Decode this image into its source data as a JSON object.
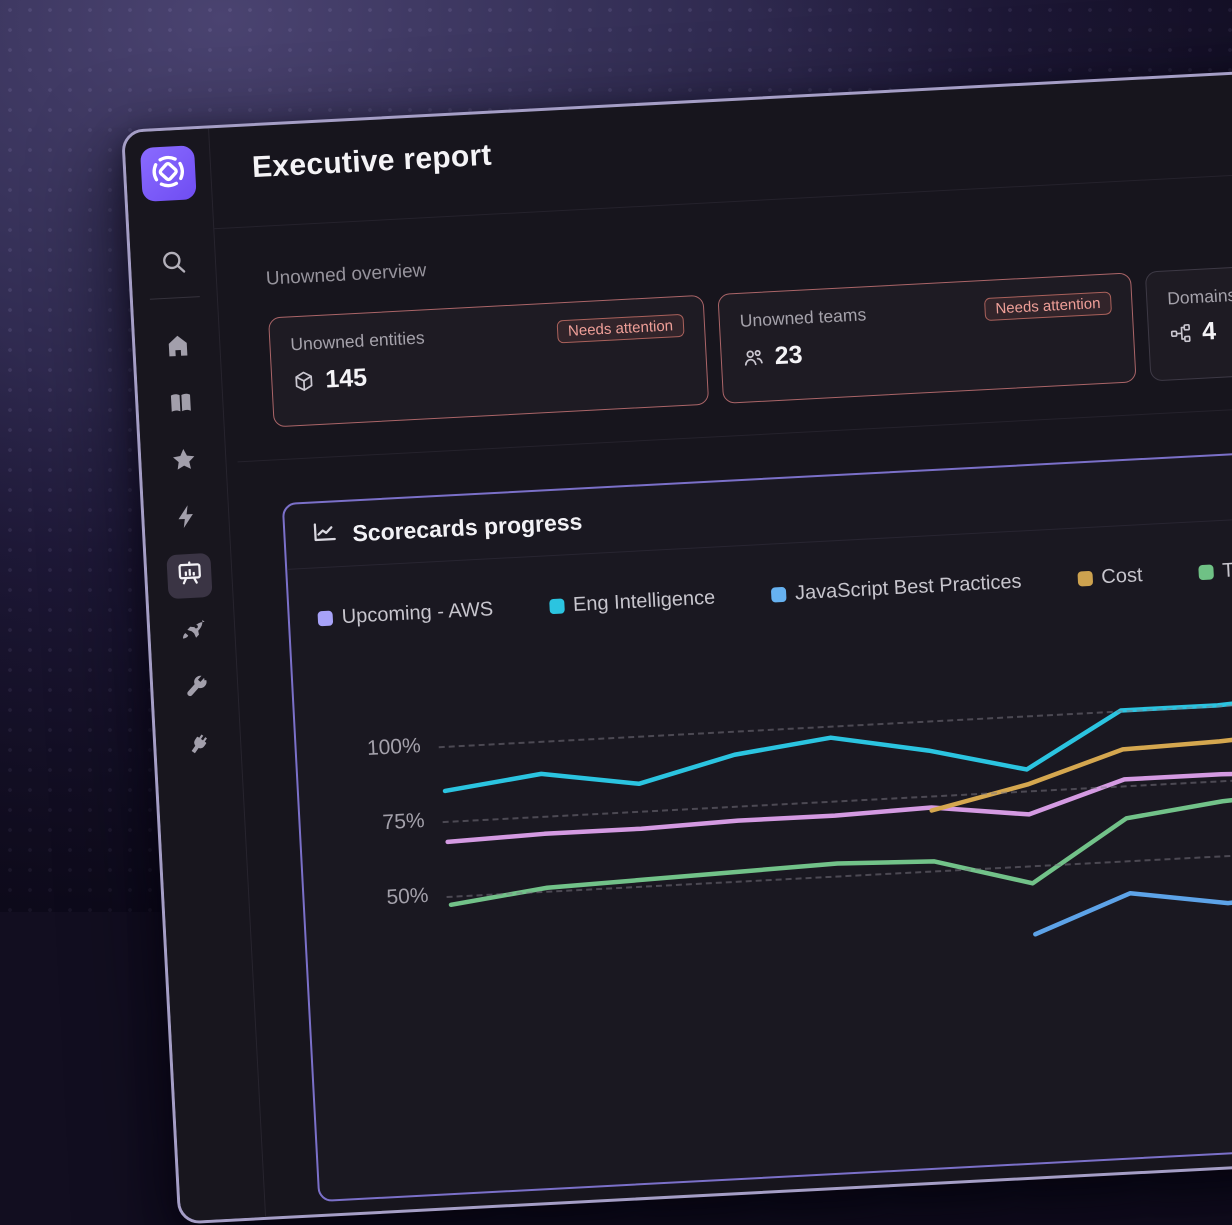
{
  "app": {
    "title": "Executive report"
  },
  "sidebar": {
    "logo_icon": "cortex-logo",
    "search_icon": "search",
    "nav": [
      {
        "icon": "home",
        "active": false
      },
      {
        "icon": "book",
        "active": false
      },
      {
        "icon": "star",
        "active": false
      },
      {
        "icon": "bolt",
        "active": false
      },
      {
        "icon": "scorecard",
        "active": true
      },
      {
        "icon": "rocket",
        "active": false
      },
      {
        "icon": "wrench",
        "active": false
      },
      {
        "icon": "plug",
        "active": false
      }
    ]
  },
  "overview": {
    "section_title": "Unowned overview",
    "cards": [
      {
        "label": "Unowned entities",
        "value": "145",
        "icon": "cube-icon",
        "badge": "Needs attention",
        "alert": true
      },
      {
        "label": "Unowned teams",
        "value": "23",
        "icon": "team-icon",
        "badge": "Needs attention",
        "alert": true
      },
      {
        "label": "Domains",
        "value": "4",
        "icon": "hierarchy-icon",
        "badge": null,
        "alert": false
      }
    ]
  },
  "scorecards": {
    "title": "Scorecards progress",
    "header_icon": "line-chart",
    "chart_data": {
      "type": "line",
      "title": "Scorecards progress",
      "xlabel": "",
      "ylabel": "",
      "y_tick_values": [
        100,
        75,
        50
      ],
      "y_tick_labels": [
        "100%",
        "75%",
        "50%"
      ],
      "ylim_visible": [
        40,
        105
      ],
      "grid": "dashed-horizontal",
      "legend_position": "top",
      "x_points": 10,
      "series": [
        {
          "name": "Upcoming - AWS",
          "swatch": "#a7a2f8",
          "line": "#d49ae2",
          "values": [
            68,
            69,
            69,
            70,
            70,
            71,
            67,
            77,
            77,
            76
          ]
        },
        {
          "name": "Eng Intelligence",
          "swatch": "#2bc4e0",
          "line": "#2bc4e0",
          "values": [
            85,
            89,
            84,
            92,
            96,
            90,
            82,
            100,
            100,
            102
          ]
        },
        {
          "name": "JavaScript Best Practices",
          "swatch": "#66b1f0",
          "line": "#5da3e8",
          "values": [
            null,
            null,
            null,
            null,
            null,
            null,
            27,
            39,
            34,
            36
          ]
        },
        {
          "name": "Cost",
          "swatch": "#cda24f",
          "line": "#d5a74f",
          "values": [
            null,
            null,
            null,
            null,
            null,
            70,
            77,
            87,
            88,
            90
          ]
        },
        {
          "name": "Team Excellence",
          "swatch": "#6fc185",
          "line": "#72c289",
          "values": [
            47,
            51,
            52,
            53,
            54,
            53,
            44,
            64,
            68,
            70
          ]
        }
      ]
    }
  },
  "colors": {
    "logo_bg": "#7a5cf5",
    "alert_card_border": "#ab6568",
    "badge_text": "#ef9f98",
    "scorecard_card_border": "#7b70c9",
    "window_border": "#a59ec6",
    "active_nav_bg": "#3a3444"
  }
}
